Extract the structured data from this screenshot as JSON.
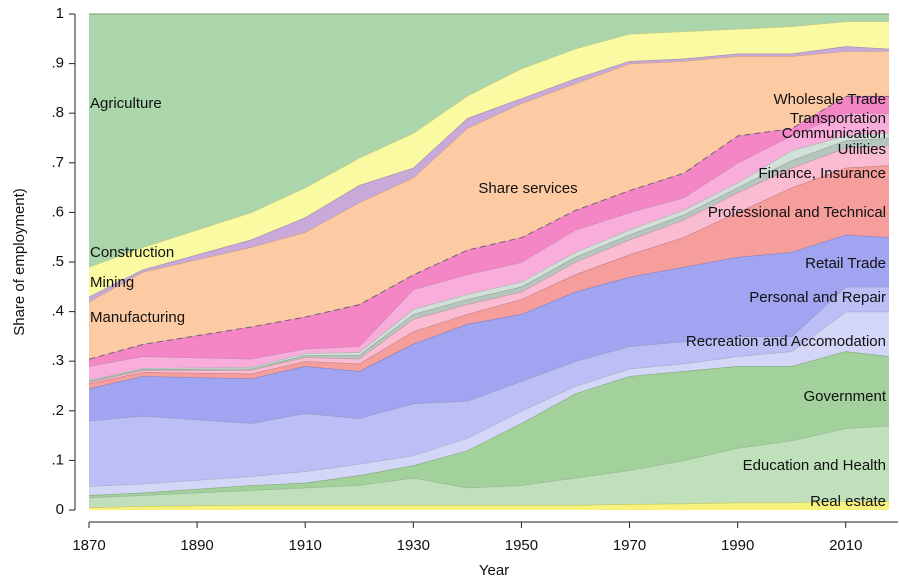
{
  "chart_data": {
    "type": "stacked_area",
    "x_label": "Year",
    "y_label": "Share of employment)",
    "annotation": "Share services",
    "x": [
      1870,
      1880,
      1900,
      1910,
      1920,
      1930,
      1940,
      1950,
      1960,
      1970,
      1980,
      1990,
      2000,
      2010,
      2018
    ],
    "xlim": [
      1870,
      2018
    ],
    "xticks": [
      1870,
      1890,
      1910,
      1930,
      1950,
      1970,
      1990,
      2010
    ],
    "ylim": [
      0,
      1
    ],
    "yticks": [
      0,
      {
        "value": 0.1,
        "label": ".1"
      },
      {
        "value": 0.2,
        "label": ".2"
      },
      {
        "value": 0.3,
        "label": ".3"
      },
      {
        "value": 0.4,
        "label": ".4"
      },
      {
        "value": 0.5,
        "label": ".5"
      },
      {
        "value": 0.6,
        "label": ".6"
      },
      {
        "value": 0.7,
        "label": ".7"
      },
      {
        "value": 0.8,
        "label": ".8"
      },
      {
        "value": 0.9,
        "label": ".9"
      },
      1
    ],
    "series": [
      {
        "name": "Real estate",
        "color": "#f7f27c",
        "values": [
          0.005,
          0.008,
          0.01,
          0.01,
          0.01,
          0.01,
          0.01,
          0.01,
          0.01,
          0.012,
          0.013,
          0.015,
          0.015,
          0.018,
          0.018
        ]
      },
      {
        "name": "Education and Health",
        "color": "#bfe0bb",
        "values": [
          0.02,
          0.022,
          0.03,
          0.035,
          0.04,
          0.055,
          0.035,
          0.04,
          0.055,
          0.068,
          0.087,
          0.11,
          0.125,
          0.147,
          0.152
        ]
      },
      {
        "name": "Government",
        "color": "#a2d19b",
        "values": [
          0.005,
          0.005,
          0.01,
          0.01,
          0.02,
          0.025,
          0.075,
          0.125,
          0.17,
          0.19,
          0.18,
          0.165,
          0.15,
          0.155,
          0.14
        ]
      },
      {
        "name": "Recreation and Accomodation",
        "color": "#d4d6f8",
        "values": [
          0.018,
          0.018,
          0.018,
          0.023,
          0.023,
          0.02,
          0.025,
          0.025,
          0.015,
          0.015,
          0.015,
          0.02,
          0.03,
          0.08,
          0.09
        ]
      },
      {
        "name": "Personal and Repair",
        "color": "#bcbef6",
        "values": [
          0.132,
          0.137,
          0.107,
          0.117,
          0.092,
          0.105,
          0.075,
          0.06,
          0.05,
          0.045,
          0.045,
          0.04,
          0.03,
          0.05,
          0.05
        ]
      },
      {
        "name": "Retail Trade",
        "color": "#a0a4f1",
        "values": [
          0.065,
          0.08,
          0.09,
          0.095,
          0.095,
          0.12,
          0.155,
          0.135,
          0.14,
          0.14,
          0.15,
          0.16,
          0.17,
          0.105,
          0.1
        ]
      },
      {
        "name": "Professional and Technical",
        "color": "#f59e9c",
        "values": [
          0.01,
          0.008,
          0.01,
          0.01,
          0.015,
          0.025,
          0.02,
          0.03,
          0.035,
          0.045,
          0.06,
          0.09,
          0.13,
          0.135,
          0.145
        ]
      },
      {
        "name": "Finance, Insurance",
        "color": "#f9bcd2",
        "values": [
          0.003,
          0.004,
          0.007,
          0.008,
          0.01,
          0.025,
          0.02,
          0.015,
          0.025,
          0.03,
          0.035,
          0.04,
          0.04,
          0.04,
          0.04
        ]
      },
      {
        "name": "Utilities",
        "color": "#b5c6bd",
        "values": [
          0.002,
          0.002,
          0.003,
          0.004,
          0.007,
          0.01,
          0.01,
          0.01,
          0.01,
          0.01,
          0.01,
          0.01,
          0.015,
          0.015,
          0.015
        ]
      },
      {
        "name": "Communication",
        "color": "#d2e0d9",
        "values": [
          0.002,
          0.002,
          0.003,
          0.004,
          0.006,
          0.01,
          0.01,
          0.01,
          0.01,
          0.01,
          0.01,
          0.01,
          0.02,
          0.01,
          0.01
        ]
      },
      {
        "name": "Transportation",
        "color": "#f9addb",
        "values": [
          0.028,
          0.024,
          0.017,
          0.009,
          0.012,
          0.04,
          0.04,
          0.04,
          0.045,
          0.035,
          0.025,
          0.04,
          0.03,
          0.045,
          0.04
        ]
      },
      {
        "name": "Wholesale Trade",
        "color": "#f586c6",
        "values": [
          0.015,
          0.025,
          0.065,
          0.065,
          0.085,
          0.03,
          0.05,
          0.05,
          0.04,
          0.045,
          0.05,
          0.055,
          0.015,
          0.035,
          0.035
        ]
      },
      {
        "name": "Manufacturing",
        "color": "#fccba3",
        "values": [
          0.115,
          0.145,
          0.16,
          0.17,
          0.205,
          0.195,
          0.245,
          0.27,
          0.255,
          0.255,
          0.225,
          0.16,
          0.145,
          0.09,
          0.09
        ]
      },
      {
        "name": "Mining",
        "color": "#c9a9d9",
        "values": [
          0.01,
          0.005,
          0.015,
          0.03,
          0.035,
          0.02,
          0.02,
          0.01,
          0.01,
          0.005,
          0.005,
          0.005,
          0.005,
          0.01,
          0.005
        ]
      },
      {
        "name": "Construction",
        "color": "#fafaa2",
        "values": [
          0.06,
          0.045,
          0.055,
          0.06,
          0.055,
          0.07,
          0.045,
          0.06,
          0.06,
          0.055,
          0.055,
          0.05,
          0.055,
          0.05,
          0.055
        ]
      },
      {
        "name": "Agriculture",
        "color": "#abd5aa",
        "values": [
          0.51,
          0.47,
          0.4,
          0.35,
          0.29,
          0.24,
          0.165,
          0.11,
          0.07,
          0.04,
          0.035,
          0.03,
          0.025,
          0.015,
          0.015
        ]
      }
    ]
  }
}
